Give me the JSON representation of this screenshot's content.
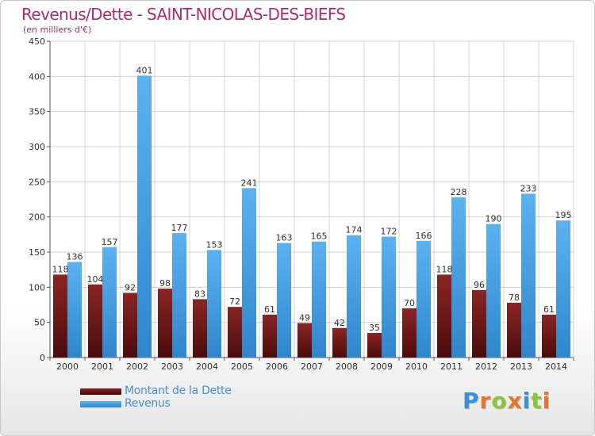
{
  "header": {
    "title": "Revenus/Dette - SAINT-NICOLAS-DES-BIEFS",
    "subtitle": "(en milliers d'€)"
  },
  "legend": {
    "debt_label": "Montant de la Dette",
    "revenue_label": "Revenus"
  },
  "logo": {
    "letters": [
      "P",
      "r",
      "o",
      "x",
      "i",
      "t",
      "i"
    ],
    "colors": [
      "#3b8fd6",
      "#e8732d",
      "#8cc43c",
      "#e8732d",
      "#3b8fd6",
      "#8cc43c",
      "#e8732d"
    ]
  },
  "colors": {
    "debt": "#7a1a1a",
    "revenue": "#4aa3e8",
    "title": "#b02a6e"
  },
  "chart_data": {
    "type": "bar",
    "categories": [
      "2000",
      "2001",
      "2002",
      "2003",
      "2004",
      "2005",
      "2006",
      "2007",
      "2008",
      "2009",
      "2010",
      "2011",
      "2012",
      "2013",
      "2014"
    ],
    "series": [
      {
        "name": "Montant de la Dette",
        "values": [
          118,
          104,
          92,
          98,
          83,
          72,
          61,
          49,
          42,
          35,
          70,
          118,
          96,
          78,
          61
        ]
      },
      {
        "name": "Revenus",
        "values": [
          136,
          157,
          401,
          177,
          153,
          241,
          163,
          165,
          174,
          172,
          166,
          228,
          190,
          233,
          195
        ]
      }
    ],
    "ylim": [
      0,
      450
    ],
    "yticks": [
      0,
      50,
      100,
      150,
      200,
      250,
      300,
      350,
      400,
      450
    ],
    "grid": true
  }
}
